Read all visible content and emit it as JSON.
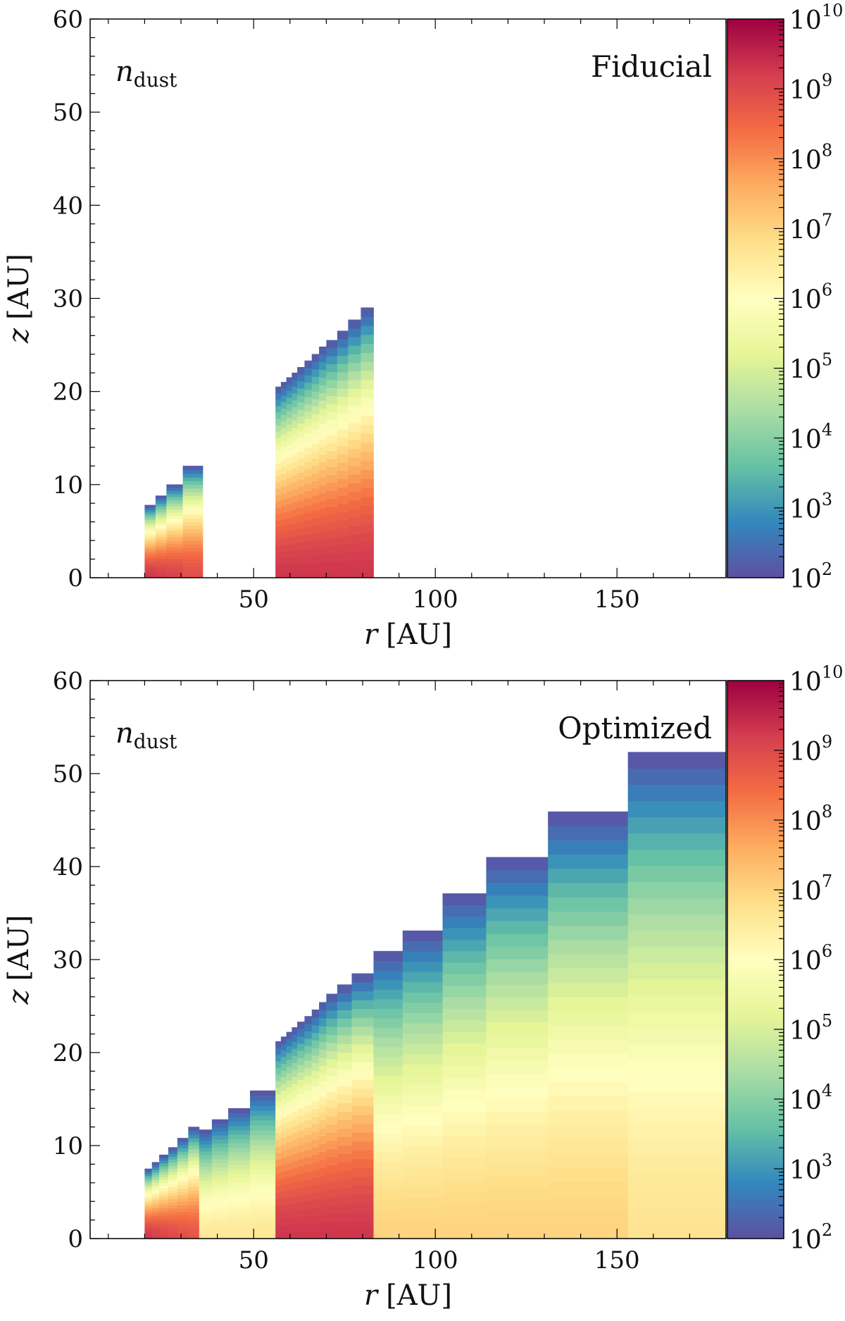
{
  "chart_data": [
    {
      "type": "heatmap",
      "panel_label": "Fiducial",
      "quantity_symbol": "n",
      "quantity_subscript": "dust",
      "xlabel_symbol": "r",
      "xlabel_unit": "[AU]",
      "ylabel_symbol": "z",
      "ylabel_unit": "[AU]",
      "xlim": [
        5,
        180
      ],
      "ylim": [
        0,
        60
      ],
      "xticks": [
        50,
        100,
        150
      ],
      "yticks": [
        0,
        10,
        20,
        30,
        40,
        50,
        60
      ],
      "colorbar": {
        "scale": "log",
        "range": [
          100,
          10000000000
        ],
        "tick_base": "10",
        "tick_exponents": [
          "2",
          "3",
          "4",
          "5",
          "6",
          "7",
          "8",
          "9",
          "10"
        ],
        "colormap": "Spectral_r"
      },
      "columns_note": "r0/r1 = radial cell bounds (AU), top = column height z (AU), logn_mid = log10 n_dust at midplane",
      "columns": [
        {
          "r0": 20,
          "r1": 23,
          "top": 7.8,
          "logn_mid": 9.3
        },
        {
          "r0": 23,
          "r1": 26,
          "top": 8.8,
          "logn_mid": 9.2
        },
        {
          "r0": 26,
          "r1": 30.5,
          "top": 10.0,
          "logn_mid": 9.1
        },
        {
          "r0": 30.5,
          "r1": 36,
          "top": 12.0,
          "logn_mid": 8.9
        },
        {
          "r0": 56,
          "r1": 57.5,
          "top": 20.5,
          "logn_mid": 9.3
        },
        {
          "r0": 57.5,
          "r1": 59,
          "top": 21.0,
          "logn_mid": 9.3
        },
        {
          "r0": 59,
          "r1": 60.5,
          "top": 21.5,
          "logn_mid": 9.3
        },
        {
          "r0": 60.5,
          "r1": 62,
          "top": 22.0,
          "logn_mid": 9.3
        },
        {
          "r0": 62,
          "r1": 64,
          "top": 22.6,
          "logn_mid": 9.3
        },
        {
          "r0": 64,
          "r1": 66,
          "top": 23.3,
          "logn_mid": 9.3
        },
        {
          "r0": 66,
          "r1": 68,
          "top": 24.0,
          "logn_mid": 9.3
        },
        {
          "r0": 68,
          "r1": 70,
          "top": 24.8,
          "logn_mid": 9.3
        },
        {
          "r0": 70,
          "r1": 73,
          "top": 25.5,
          "logn_mid": 9.3
        },
        {
          "r0": 73,
          "r1": 76,
          "top": 26.5,
          "logn_mid": 9.3
        },
        {
          "r0": 76,
          "r1": 79.5,
          "top": 27.7,
          "logn_mid": 9.3
        },
        {
          "r0": 79.5,
          "r1": 83,
          "top": 29.0,
          "logn_mid": 9.3
        }
      ]
    },
    {
      "type": "heatmap",
      "panel_label": "Optimized",
      "quantity_symbol": "n",
      "quantity_subscript": "dust",
      "xlabel_symbol": "r",
      "xlabel_unit": "[AU]",
      "ylabel_symbol": "z",
      "ylabel_unit": "[AU]",
      "xlim": [
        5,
        180
      ],
      "ylim": [
        0,
        60
      ],
      "xticks": [
        50,
        100,
        150
      ],
      "yticks": [
        0,
        10,
        20,
        30,
        40,
        50,
        60
      ],
      "colorbar": {
        "scale": "log",
        "range": [
          100,
          10000000000
        ],
        "tick_base": "10",
        "tick_exponents": [
          "2",
          "3",
          "4",
          "5",
          "6",
          "7",
          "8",
          "9",
          "10"
        ],
        "colormap": "Spectral_r"
      },
      "columns_note": "r0/r1 = radial cell bounds (AU), top = column height z (AU), logn_mid = log10 n_dust at midplane",
      "columns": [
        {
          "r0": 20,
          "r1": 22,
          "top": 7.5,
          "logn_mid": 9.3
        },
        {
          "r0": 22,
          "r1": 24,
          "top": 8.2,
          "logn_mid": 9.2
        },
        {
          "r0": 24,
          "r1": 26.5,
          "top": 9.0,
          "logn_mid": 9.1
        },
        {
          "r0": 26.5,
          "r1": 29,
          "top": 9.8,
          "logn_mid": 9.0
        },
        {
          "r0": 29,
          "r1": 32,
          "top": 10.8,
          "logn_mid": 8.9
        },
        {
          "r0": 32,
          "r1": 35,
          "top": 12.0,
          "logn_mid": 8.8
        },
        {
          "r0": 35,
          "r1": 38.5,
          "top": 11.7,
          "logn_mid": 6.6
        },
        {
          "r0": 38.5,
          "r1": 43,
          "top": 12.8,
          "logn_mid": 6.6
        },
        {
          "r0": 43,
          "r1": 49,
          "top": 14.0,
          "logn_mid": 6.6
        },
        {
          "r0": 49,
          "r1": 56,
          "top": 15.9,
          "logn_mid": 6.6
        },
        {
          "r0": 56,
          "r1": 57.5,
          "top": 21.2,
          "logn_mid": 9.3
        },
        {
          "r0": 57.5,
          "r1": 59,
          "top": 21.7,
          "logn_mid": 9.3
        },
        {
          "r0": 59,
          "r1": 60.5,
          "top": 22.2,
          "logn_mid": 9.3
        },
        {
          "r0": 60.5,
          "r1": 62,
          "top": 22.7,
          "logn_mid": 9.3
        },
        {
          "r0": 62,
          "r1": 64,
          "top": 23.3,
          "logn_mid": 9.3
        },
        {
          "r0": 64,
          "r1": 66,
          "top": 23.9,
          "logn_mid": 9.3
        },
        {
          "r0": 66,
          "r1": 68,
          "top": 24.6,
          "logn_mid": 9.3
        },
        {
          "r0": 68,
          "r1": 70,
          "top": 25.4,
          "logn_mid": 9.3
        },
        {
          "r0": 70,
          "r1": 73,
          "top": 26.3,
          "logn_mid": 9.3
        },
        {
          "r0": 73,
          "r1": 77,
          "top": 27.3,
          "logn_mid": 9.3
        },
        {
          "r0": 77,
          "r1": 83,
          "top": 28.5,
          "logn_mid": 9.3
        },
        {
          "r0": 83,
          "r1": 91,
          "top": 30.9,
          "logn_mid": 7.0
        },
        {
          "r0": 91,
          "r1": 102,
          "top": 33.1,
          "logn_mid": 7.0
        },
        {
          "r0": 102,
          "r1": 114,
          "top": 37.1,
          "logn_mid": 7.0
        },
        {
          "r0": 114,
          "r1": 131,
          "top": 41.0,
          "logn_mid": 7.0
        },
        {
          "r0": 131,
          "r1": 153,
          "top": 45.9,
          "logn_mid": 7.0
        },
        {
          "r0": 153,
          "r1": 180,
          "top": 52.3,
          "logn_mid": 6.7
        }
      ]
    }
  ]
}
